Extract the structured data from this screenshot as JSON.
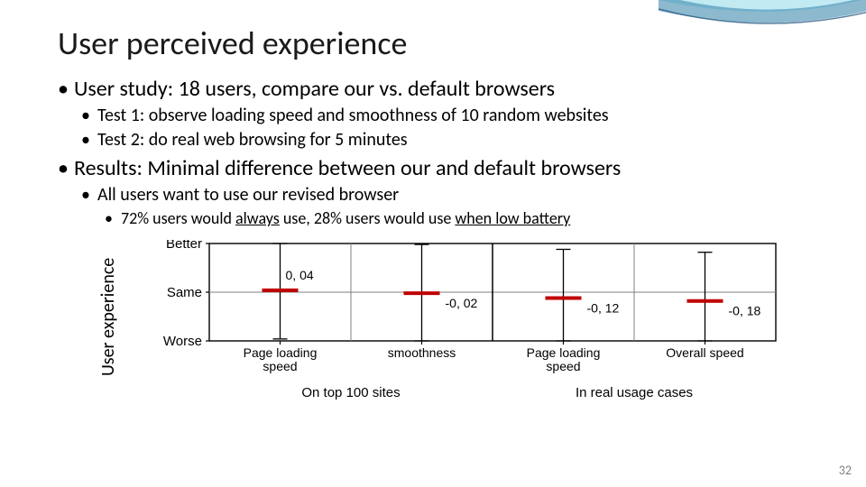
{
  "title": "User perceived experience",
  "bullets": {
    "b1": "User study: 18 users, compare our vs. default browsers",
    "b1a": "Test 1: observe loading speed and smoothness of 10 random websites",
    "b1b": "Test 2: do real web browsing for 5 minutes",
    "b2": "Results: Minimal difference between our and default browsers",
    "b2a": "All users want to use our revised browser",
    "b2b_pre": "72% users would ",
    "b2b_u1": "always",
    "b2b_mid": " use, 28% users would use ",
    "b2b_u2": "when low battery"
  },
  "chart": {
    "ylabel": "User experience",
    "yticks": [
      "Better",
      "Same",
      "Worse"
    ],
    "categories": [
      "Page loading speed",
      "smoothness",
      "Page loading speed",
      "Overall speed"
    ],
    "group_labels": [
      "On top 100 sites",
      "In real usage cases"
    ],
    "values": [
      0.04,
      -0.02,
      -0.12,
      -0.18
    ],
    "value_labels": [
      "0, 04",
      "-0, 02",
      "-0, 12",
      "-0, 18"
    ],
    "error": 1.0,
    "ylim": [
      -1,
      1
    ],
    "colors": {
      "series": "#c00000",
      "axis": "#000000",
      "grid": "#808080",
      "background": "#ffffff",
      "cap": "#000000"
    },
    "line_width": 4,
    "cap_width": 20,
    "font_size_tick": 15,
    "font_size_cat": 14,
    "font_size_group": 15,
    "font_size_val": 14
  },
  "pagenum": "32"
}
